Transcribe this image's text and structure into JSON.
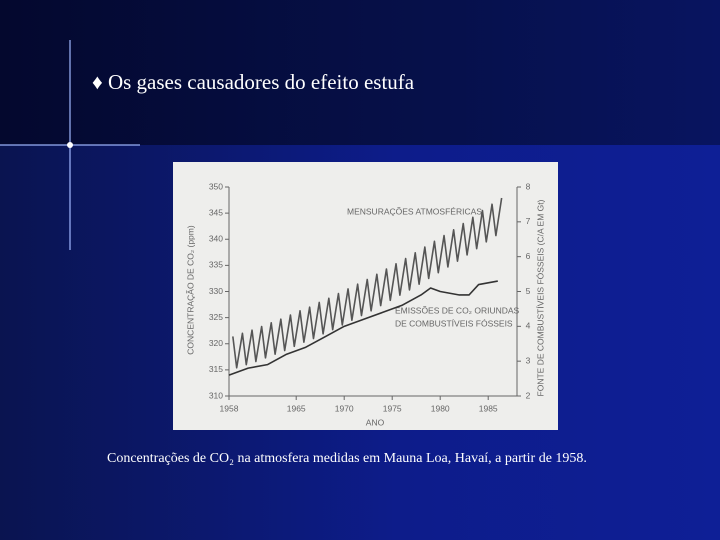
{
  "header": {
    "title": "♦ Os gases causadores do efeito estufa"
  },
  "caption": "Concentrações de CO₂ na atmosfera medidas em Mauna Loa, Havaí, a partir de 1958.",
  "chart_data": {
    "type": "line",
    "x_label": "ANO",
    "y_label": "CONCENTRAÇÃO DE CO₂ (ppm)",
    "y2_label": "FONTE DE COMBUSTÍVEIS FÓSSEIS (C/A EM Gt)",
    "annotations": [
      "MENSURAÇÕES ATMOSFÉRICAS",
      "EMISSÕES DE CO₂ ORIUNDAS",
      "DE COMBUSTÍVEIS FÓSSEIS"
    ],
    "xlim": [
      1958,
      1988
    ],
    "xticks": [
      1958,
      1965,
      1970,
      1975,
      1980,
      1985
    ],
    "ylim": [
      310,
      350
    ],
    "yticks": [
      310,
      315,
      320,
      325,
      330,
      335,
      340,
      345,
      350
    ],
    "y2lim": [
      2,
      8
    ],
    "y2ticks": [
      2,
      3,
      4,
      5,
      6,
      7,
      8
    ],
    "series": [
      {
        "color": "#555555",
        "axis": "y",
        "x": [
          1958.4,
          1958.8,
          1959.4,
          1959.8,
          1960.4,
          1960.8,
          1961.4,
          1961.8,
          1962.4,
          1962.8,
          1963.4,
          1963.8,
          1964.4,
          1964.8,
          1965.4,
          1965.8,
          1966.4,
          1966.8,
          1967.4,
          1967.8,
          1968.4,
          1968.8,
          1969.4,
          1969.8,
          1970.4,
          1970.8,
          1971.4,
          1971.8,
          1972.4,
          1972.8,
          1973.4,
          1973.8,
          1974.4,
          1974.8,
          1975.4,
          1975.8,
          1976.4,
          1976.8,
          1977.4,
          1977.8,
          1978.4,
          1978.8,
          1979.4,
          1979.8,
          1980.4,
          1980.8,
          1981.4,
          1981.8,
          1982.4,
          1982.8,
          1983.4,
          1983.8,
          1984.4,
          1984.8,
          1985.4,
          1985.8,
          1986.4
        ],
        "values": [
          321.4,
          315.4,
          322.0,
          316.0,
          322.6,
          316.6,
          323.3,
          317.3,
          324.0,
          318.0,
          324.7,
          318.7,
          325.5,
          319.5,
          326.3,
          320.3,
          327.0,
          321.0,
          327.9,
          321.9,
          328.7,
          322.7,
          329.6,
          323.6,
          330.5,
          324.5,
          331.4,
          325.4,
          332.3,
          326.3,
          333.3,
          327.3,
          334.3,
          328.3,
          335.3,
          329.3,
          336.3,
          330.3,
          337.4,
          331.4,
          338.5,
          332.5,
          339.6,
          333.6,
          340.7,
          334.7,
          341.8,
          335.8,
          343.0,
          337.0,
          344.2,
          338.2,
          345.5,
          339.5,
          346.7,
          340.7,
          347.9
        ]
      },
      {
        "color": "#333333",
        "axis": "y2",
        "x": [
          1958,
          1960,
          1962,
          1964,
          1966,
          1968,
          1970,
          1972,
          1974,
          1976,
          1978,
          1979,
          1980,
          1982,
          1983,
          1984,
          1986
        ],
        "values": [
          2.6,
          2.8,
          2.9,
          3.2,
          3.4,
          3.7,
          4.0,
          4.2,
          4.4,
          4.6,
          4.9,
          5.1,
          5.0,
          4.9,
          4.9,
          5.2,
          5.3
        ]
      }
    ]
  }
}
